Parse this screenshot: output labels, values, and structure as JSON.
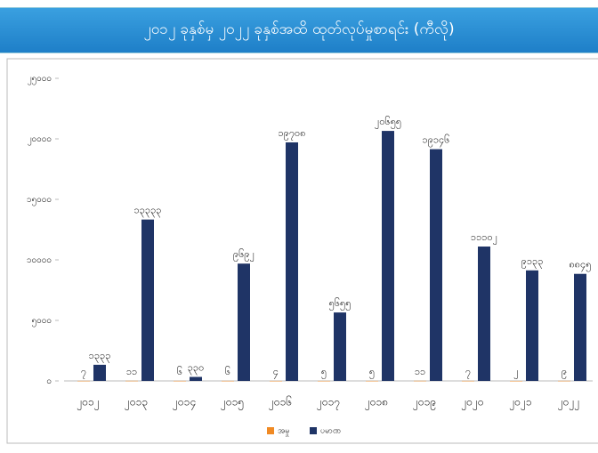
{
  "chart_data": {
    "type": "bar",
    "title": "၂၀၁၂ ခုနှစ်မှ ၂၀၂၂ ခုနှစ်အထိ ထုတ်လုပ်မှုစာရင်း (ကီလို)",
    "categories": [
      "၂၀၁၂",
      "၂၀၁၃",
      "၂၀၁၄",
      "၂၀၁၅",
      "၂၀၁၆",
      "၂၀၁၇",
      "၂၀၁၈",
      "၂၀၁၉",
      "၂၀၂၀",
      "၂၀၂၁",
      "၂၀၂၂"
    ],
    "series": [
      {
        "name": "အမှု",
        "color": "#f08a24",
        "values": [
          7,
          11,
          6,
          6,
          4,
          5,
          5,
          11,
          7,
          2,
          9
        ],
        "value_labels": [
          "၇",
          "၁၁",
          "၆",
          "၆",
          "၄",
          "၅",
          "၅",
          "၁၁",
          "၇",
          "၂",
          "၉"
        ]
      },
      {
        "name": "ပမာဏ",
        "color": "#1f3466",
        "values": [
          1333,
          13333,
          330,
          9692,
          19708,
          5655,
          20655,
          19146,
          11102,
          9133,
          8845
        ],
        "value_labels": [
          "၁၃၃၃",
          "၁၃၃၃၃",
          "၃၃၀",
          "၉၆၉၂",
          "၁၉၇၀၈",
          "၅၆၅၅",
          "၂၀၆၅၅",
          "၁၉၁၄၆",
          "၁၁၁၀၂",
          "၉၁၃၃",
          "၈၈၄၅"
        ]
      }
    ],
    "ylim": [
      0,
      25000
    ],
    "yticks": [
      {
        "value": 0,
        "label": "၀"
      },
      {
        "value": 5000,
        "label": "၅၀၀၀"
      },
      {
        "value": 10000,
        "label": "၁၀၀၀၀"
      },
      {
        "value": 15000,
        "label": "၁၅၀၀၀"
      },
      {
        "value": 20000,
        "label": "၂၀၀၀၀"
      },
      {
        "value": 25000,
        "label": "၂၅၀၀၀"
      }
    ],
    "legend": "bottom"
  }
}
